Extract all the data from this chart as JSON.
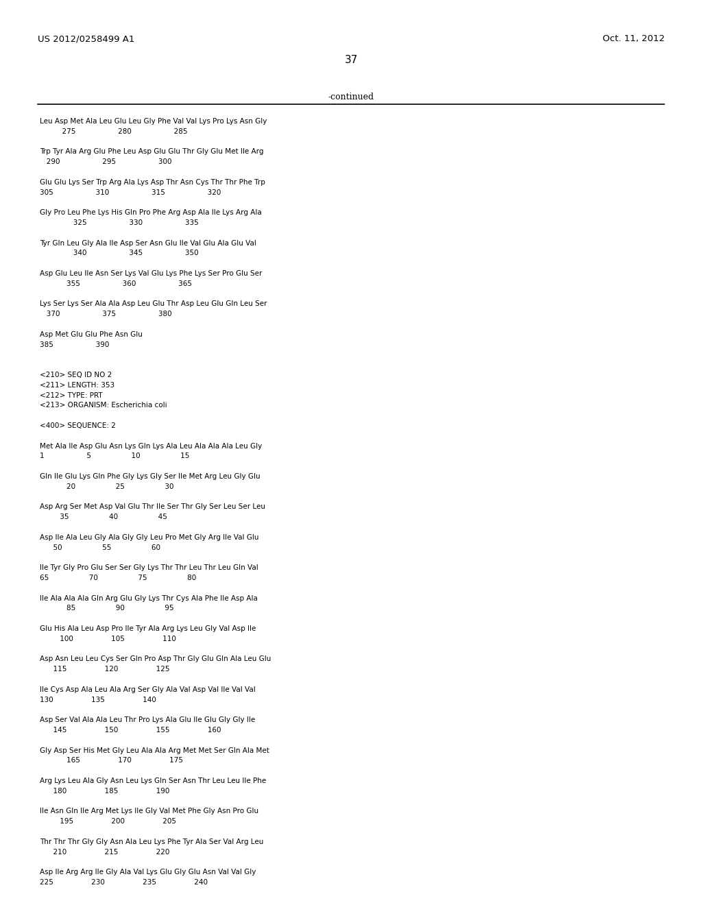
{
  "header_left": "US 2012/0258499 A1",
  "header_right": "Oct. 11, 2012",
  "page_number": "37",
  "continued_label": "-continued",
  "background_color": "#ffffff",
  "text_color": "#000000",
  "content": [
    "Leu Asp Met Ala Leu Glu Leu Gly Phe Val Val Lys Pro Lys Asn Gly",
    "          275                   280                   285",
    "",
    "Trp Tyr Ala Arg Glu Phe Leu Asp Glu Glu Thr Gly Glu Met Ile Arg",
    "   290                   295                   300",
    "",
    "Glu Glu Lys Ser Trp Arg Ala Lys Asp Thr Asn Cys Thr Thr Phe Trp",
    "305                   310                   315                   320",
    "",
    "Gly Pro Leu Phe Lys His Gln Pro Phe Arg Asp Ala Ile Lys Arg Ala",
    "               325                   330                   335",
    "",
    "Tyr Gln Leu Gly Ala Ile Asp Ser Asn Glu Ile Val Glu Ala Glu Val",
    "               340                   345                   350",
    "",
    "Asp Glu Leu Ile Asn Ser Lys Val Glu Lys Phe Lys Ser Pro Glu Ser",
    "            355                   360                   365",
    "",
    "Lys Ser Lys Ser Ala Ala Asp Leu Glu Thr Asp Leu Glu Gln Leu Ser",
    "   370                   375                   380",
    "",
    "Asp Met Glu Glu Phe Asn Glu",
    "385                   390",
    "",
    "",
    "<210> SEQ ID NO 2",
    "<211> LENGTH: 353",
    "<212> TYPE: PRT",
    "<213> ORGANISM: Escherichia coli",
    "",
    "<400> SEQUENCE: 2",
    "",
    "Met Ala Ile Asp Glu Asn Lys Gln Lys Ala Leu Ala Ala Ala Leu Gly",
    "1                   5                  10                  15",
    "",
    "Gln Ile Glu Lys Gln Phe Gly Lys Gly Ser Ile Met Arg Leu Gly Glu",
    "            20                  25                  30",
    "",
    "Asp Arg Ser Met Asp Val Glu Thr Ile Ser Thr Gly Ser Leu Ser Leu",
    "         35                  40                  45",
    "",
    "Asp Ile Ala Leu Gly Ala Gly Gly Leu Pro Met Gly Arg Ile Val Glu",
    "      50                  55                  60",
    "",
    "Ile Tyr Gly Pro Glu Ser Ser Gly Lys Thr Thr Leu Thr Leu Gln Val",
    "65                  70                  75                  80",
    "",
    "Ile Ala Ala Ala Gln Arg Glu Gly Lys Thr Cys Ala Phe Ile Asp Ala",
    "            85                  90                  95",
    "",
    "Glu His Ala Leu Asp Pro Ile Tyr Ala Arg Lys Leu Gly Val Asp Ile",
    "         100                 105                 110",
    "",
    "Asp Asn Leu Leu Cys Ser Gln Pro Asp Thr Gly Glu Gln Ala Leu Glu",
    "      115                 120                 125",
    "",
    "Ile Cys Asp Ala Leu Ala Arg Ser Gly Ala Val Asp Val Ile Val Val",
    "130                 135                 140",
    "",
    "Asp Ser Val Ala Ala Leu Thr Pro Lys Ala Glu Ile Glu Gly Gly Ile",
    "      145                 150                 155                 160",
    "",
    "Gly Asp Ser His Met Gly Leu Ala Ala Arg Met Met Ser Gln Ala Met",
    "            165                 170                 175",
    "",
    "Arg Lys Leu Ala Gly Asn Leu Lys Gln Ser Asn Thr Leu Leu Ile Phe",
    "      180                 185                 190",
    "",
    "Ile Asn Gln Ile Arg Met Lys Ile Gly Val Met Phe Gly Asn Pro Glu",
    "         195                 200                 205",
    "",
    "Thr Thr Thr Gly Gly Asn Ala Leu Lys Phe Tyr Ala Ser Val Arg Leu",
    "      210                 215                 220",
    "",
    "Asp Ile Arg Arg Ile Gly Ala Val Lys Glu Gly Glu Asn Val Val Gly",
    "225                 230                 235                 240"
  ]
}
